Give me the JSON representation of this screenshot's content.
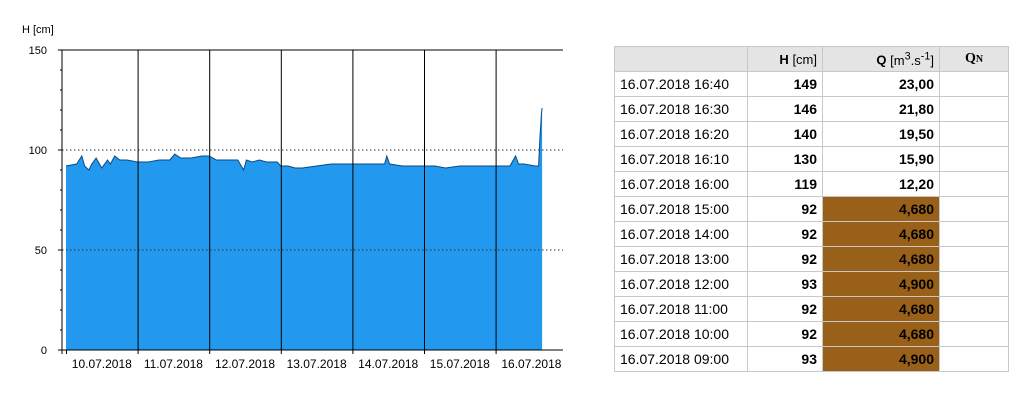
{
  "chart_data": {
    "type": "area",
    "ylabel": "H [cm]",
    "ylim": [
      0,
      150
    ],
    "yticks": [
      0,
      50,
      100,
      150
    ],
    "dotted_reference_lines": [
      50,
      100
    ],
    "x_tick_labels": [
      "10.07.2018",
      "11.07.2018",
      "12.07.2018",
      "13.07.2018",
      "14.07.2018",
      "15.07.2018",
      "16.07.2018"
    ],
    "xlim_days": [
      0,
      6.65
    ],
    "fill_color": "#2299ee",
    "x_days": [
      0,
      0.15,
      0.22,
      0.26,
      0.32,
      0.36,
      0.42,
      0.5,
      0.58,
      0.62,
      0.68,
      0.75,
      0.85,
      1.0,
      1.15,
      1.3,
      1.45,
      1.52,
      1.6,
      1.75,
      1.9,
      2.0,
      2.1,
      2.25,
      2.4,
      2.48,
      2.52,
      2.6,
      2.7,
      2.8,
      2.95,
      3.0,
      3.1,
      3.2,
      3.3,
      3.5,
      3.7,
      3.9,
      4.0,
      4.3,
      4.45,
      4.48,
      4.52,
      4.7,
      4.9,
      5.0,
      5.15,
      5.3,
      5.5,
      5.7,
      5.9,
      6.0,
      6.2,
      6.28,
      6.32,
      6.4,
      6.55,
      6.6,
      6.62,
      6.63,
      6.64,
      6.65
    ],
    "h_cm": [
      92,
      93,
      97,
      92,
      90,
      93,
      96,
      91,
      95,
      93,
      97,
      95,
      95,
      94,
      94,
      95,
      95,
      98,
      96,
      96,
      97,
      97,
      95,
      95,
      95,
      90,
      95,
      94,
      95,
      94,
      94,
      92,
      92,
      91,
      91,
      92,
      93,
      93,
      93,
      93,
      93,
      97,
      93,
      92,
      92,
      92,
      92,
      91,
      92,
      92,
      92,
      92,
      92,
      97,
      93,
      93,
      92,
      92,
      107,
      112,
      118,
      121
    ],
    "table": {
      "headers": [
        "H",
        "[cm]",
        "Q",
        "[m",
        "3",
        ".s",
        "-1",
        "]",
        "Q",
        "N"
      ],
      "rows": [
        {
          "time": "16.07.2018 16:40",
          "h": "149",
          "q": "23,00",
          "qn": "",
          "highlight": false
        },
        {
          "time": "16.07.2018 16:30",
          "h": "146",
          "q": "21,80",
          "qn": "",
          "highlight": false
        },
        {
          "time": "16.07.2018 16:20",
          "h": "140",
          "q": "19,50",
          "qn": "",
          "highlight": false
        },
        {
          "time": "16.07.2018 16:10",
          "h": "130",
          "q": "15,90",
          "qn": "",
          "highlight": false
        },
        {
          "time": "16.07.2018 16:00",
          "h": "119",
          "q": "12,20",
          "qn": "",
          "highlight": false
        },
        {
          "time": "16.07.2018 15:00",
          "h": "92",
          "q": "4,680",
          "qn": "",
          "highlight": true
        },
        {
          "time": "16.07.2018 14:00",
          "h": "92",
          "q": "4,680",
          "qn": "",
          "highlight": true
        },
        {
          "time": "16.07.2018 13:00",
          "h": "92",
          "q": "4,680",
          "qn": "",
          "highlight": true
        },
        {
          "time": "16.07.2018 12:00",
          "h": "93",
          "q": "4,900",
          "qn": "",
          "highlight": true
        },
        {
          "time": "16.07.2018 11:00",
          "h": "92",
          "q": "4,680",
          "qn": "",
          "highlight": true
        },
        {
          "time": "16.07.2018 10:00",
          "h": "92",
          "q": "4,680",
          "qn": "",
          "highlight": true
        },
        {
          "time": "16.07.2018 09:00",
          "h": "93",
          "q": "4,900",
          "qn": "",
          "highlight": true
        }
      ]
    },
    "highlight_color": "#996019"
  }
}
